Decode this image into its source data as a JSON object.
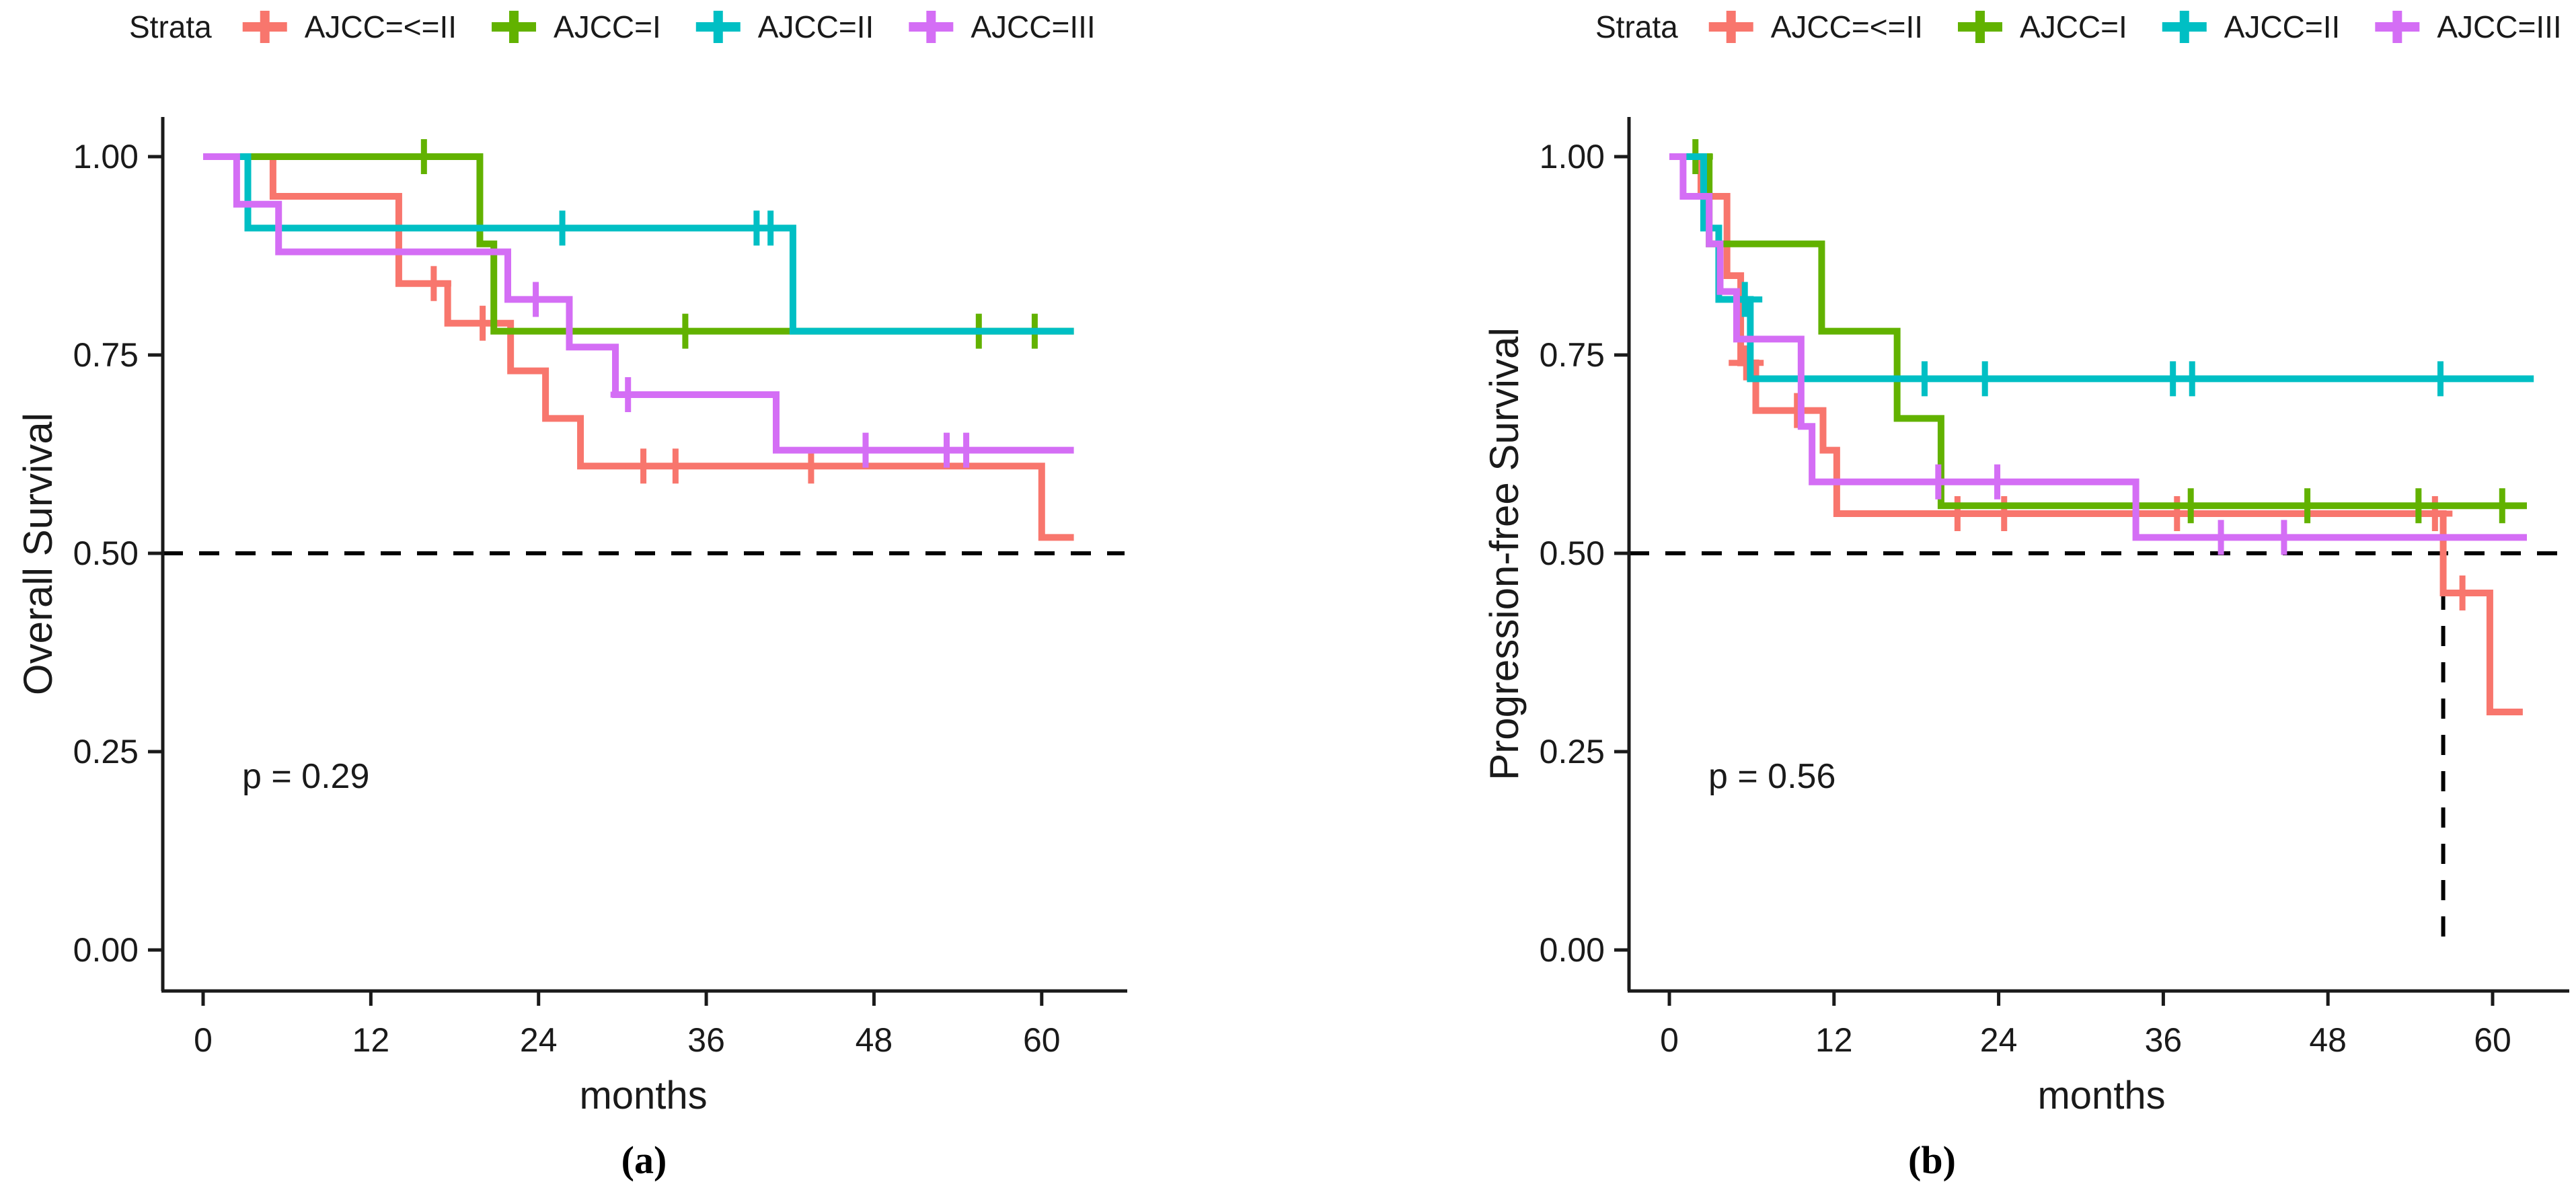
{
  "legend": {
    "title": "Strata",
    "entries": [
      {
        "label": "AJCC=<=II",
        "color": "#F8766D"
      },
      {
        "label": "AJCC=I",
        "color": "#62B200"
      },
      {
        "label": "AJCC=II",
        "color": "#00BFC4"
      },
      {
        "label": "AJCC=III",
        "color": "#D46EF5"
      }
    ]
  },
  "chart_data": [
    {
      "type": "line",
      "subtype": "kaplan-meier-step",
      "panel_label": "(a)",
      "xlabel": "months",
      "ylabel": "Overall Survival",
      "p_value": "p = 0.29",
      "xlim": [
        0,
        63
      ],
      "ylim": [
        0,
        1
      ],
      "x_ticks": [
        0,
        12,
        24,
        36,
        48,
        60
      ],
      "y_ticks": [
        0,
        0.25,
        0.5,
        0.75,
        1
      ],
      "y_tick_labels": [
        "0.00",
        "0.25",
        "0.50",
        "0.75",
        "1.00"
      ],
      "grid": false,
      "legend_position": "top",
      "ref_lines": [
        {
          "type": "h",
          "y": 0.5
        }
      ],
      "series": [
        {
          "name": "AJCC=<=II",
          "color": "#F8766D",
          "steps": [
            [
              0,
              1
            ],
            [
              5,
              0.95
            ],
            [
              14,
              0.84
            ],
            [
              17.5,
              0.79
            ],
            [
              22,
              0.73
            ],
            [
              24.5,
              0.67
            ],
            [
              27,
              0.61
            ],
            [
              60,
              0.52
            ],
            [
              62.3,
              0.52
            ]
          ],
          "censors": [
            [
              16.5,
              0.84
            ],
            [
              20,
              0.79
            ],
            [
              31.5,
              0.61
            ],
            [
              33.8,
              0.61
            ],
            [
              43.5,
              0.61
            ]
          ]
        },
        {
          "name": "AJCC=I",
          "color": "#62B200",
          "steps": [
            [
              0,
              1
            ],
            [
              19.8,
              0.89
            ],
            [
              20.8,
              0.78
            ],
            [
              62.3,
              0.78
            ]
          ],
          "censors": [
            [
              15.8,
              1
            ],
            [
              34.5,
              0.78
            ],
            [
              55.5,
              0.78
            ],
            [
              59.5,
              0.78
            ]
          ]
        },
        {
          "name": "AJCC=II",
          "color": "#00BFC4",
          "steps": [
            [
              0,
              1
            ],
            [
              3.2,
              0.91
            ],
            [
              42.2,
              0.78
            ],
            [
              62.3,
              0.78
            ]
          ],
          "censors": [
            [
              25.7,
              0.91
            ],
            [
              39.6,
              0.91
            ],
            [
              40.6,
              0.91
            ]
          ]
        },
        {
          "name": "AJCC=III",
          "color": "#D46EF5",
          "steps": [
            [
              0,
              1
            ],
            [
              2.4,
              0.94
            ],
            [
              5.4,
              0.88
            ],
            [
              21.8,
              0.82
            ],
            [
              26.2,
              0.76
            ],
            [
              29.5,
              0.7
            ],
            [
              41,
              0.63
            ],
            [
              62.3,
              0.63
            ]
          ],
          "censors": [
            [
              23.8,
              0.82
            ],
            [
              30.4,
              0.7
            ],
            [
              47.4,
              0.63
            ],
            [
              53.2,
              0.63
            ],
            [
              54.6,
              0.63
            ]
          ]
        }
      ]
    },
    {
      "type": "line",
      "subtype": "kaplan-meier-step",
      "panel_label": "(b)",
      "xlabel": "months",
      "ylabel": "Progression-free Survival",
      "p_value": "p = 0.56",
      "xlim": [
        0,
        63
      ],
      "ylim": [
        0,
        1
      ],
      "x_ticks": [
        0,
        12,
        24,
        36,
        48,
        60
      ],
      "y_ticks": [
        0,
        0.25,
        0.5,
        0.75,
        1
      ],
      "y_tick_labels": [
        "0.00",
        "0.25",
        "0.50",
        "0.75",
        "1.00"
      ],
      "grid": false,
      "legend_position": "top",
      "ref_lines": [
        {
          "type": "h",
          "y": 0.5
        },
        {
          "type": "v",
          "x": 56.4,
          "y_from": 0.5,
          "y_to": 0
        }
      ],
      "series": [
        {
          "name": "AJCC=<=II",
          "color": "#F8766D",
          "steps": [
            [
              0,
              1
            ],
            [
              2.3,
              0.95
            ],
            [
              4.2,
              0.85
            ],
            [
              5.2,
              0.74
            ],
            [
              6.3,
              0.68
            ],
            [
              11.2,
              0.63
            ],
            [
              12.2,
              0.55
            ],
            [
              56.4,
              0.45
            ],
            [
              59.8,
              0.3
            ],
            [
              62.2,
              0.3
            ]
          ],
          "censors": [
            [
              5.6,
              0.74
            ],
            [
              9.3,
              0.68
            ],
            [
              21,
              0.55
            ],
            [
              24.4,
              0.55
            ],
            [
              37,
              0.55
            ],
            [
              55.8,
              0.55
            ],
            [
              57.8,
              0.45
            ]
          ]
        },
        {
          "name": "AJCC=I",
          "color": "#62B200",
          "steps": [
            [
              0,
              1
            ],
            [
              2.9,
              0.89
            ],
            [
              11.1,
              0.78
            ],
            [
              16.6,
              0.67
            ],
            [
              19.8,
              0.56
            ],
            [
              62.5,
              0.56
            ]
          ],
          "censors": [
            [
              1.9,
              1
            ],
            [
              38,
              0.56
            ],
            [
              46.5,
              0.56
            ],
            [
              54.6,
              0.56
            ],
            [
              60.7,
              0.56
            ]
          ]
        },
        {
          "name": "AJCC=II",
          "color": "#00BFC4",
          "steps": [
            [
              0,
              1
            ],
            [
              2.5,
              0.91
            ],
            [
              3.6,
              0.82
            ],
            [
              5.9,
              0.72
            ],
            [
              63,
              0.72
            ]
          ],
          "censors": [
            [
              5.5,
              0.82
            ],
            [
              18.6,
              0.72
            ],
            [
              23,
              0.72
            ],
            [
              36.7,
              0.72
            ],
            [
              38.1,
              0.72
            ],
            [
              56.2,
              0.72
            ]
          ]
        },
        {
          "name": "AJCC=III",
          "color": "#D46EF5",
          "steps": [
            [
              0,
              1
            ],
            [
              1,
              0.95
            ],
            [
              2.9,
              0.89
            ],
            [
              3.7,
              0.83
            ],
            [
              4.9,
              0.77
            ],
            [
              9.6,
              0.66
            ],
            [
              10.4,
              0.59
            ],
            [
              34,
              0.52
            ],
            [
              62.5,
              0.52
            ]
          ],
          "censors": [
            [
              19.6,
              0.59
            ],
            [
              23.9,
              0.59
            ],
            [
              40.2,
              0.52
            ],
            [
              44.8,
              0.52
            ]
          ]
        }
      ]
    }
  ]
}
